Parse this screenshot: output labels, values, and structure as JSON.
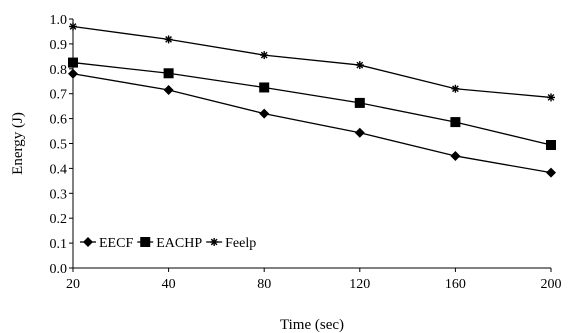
{
  "chart_data": {
    "type": "line",
    "title": "",
    "xlabel": "Time (sec)",
    "ylabel": "Energy (J)",
    "categories": [
      "20",
      "40",
      "80",
      "120",
      "160",
      "200"
    ],
    "ylim": [
      0,
      1
    ],
    "yticks": [
      "0.0",
      "0.1",
      "0.2",
      "0.3",
      "0.4",
      "0.5",
      "0.6",
      "0.7",
      "0.8",
      "0.9",
      "1.0"
    ],
    "grid": false,
    "legend_position": "bottom-left",
    "series": [
      {
        "name": "EECF",
        "marker": "diamond",
        "color": "#000000",
        "values": [
          0.78,
          0.715,
          0.62,
          0.543,
          0.45,
          0.383
        ]
      },
      {
        "name": "EACHP",
        "marker": "square",
        "color": "#000000",
        "values": [
          0.825,
          0.782,
          0.725,
          0.663,
          0.586,
          0.494
        ]
      },
      {
        "name": "Feelp",
        "marker": "star",
        "color": "#000000",
        "values": [
          0.97,
          0.918,
          0.855,
          0.815,
          0.72,
          0.685
        ]
      }
    ]
  }
}
